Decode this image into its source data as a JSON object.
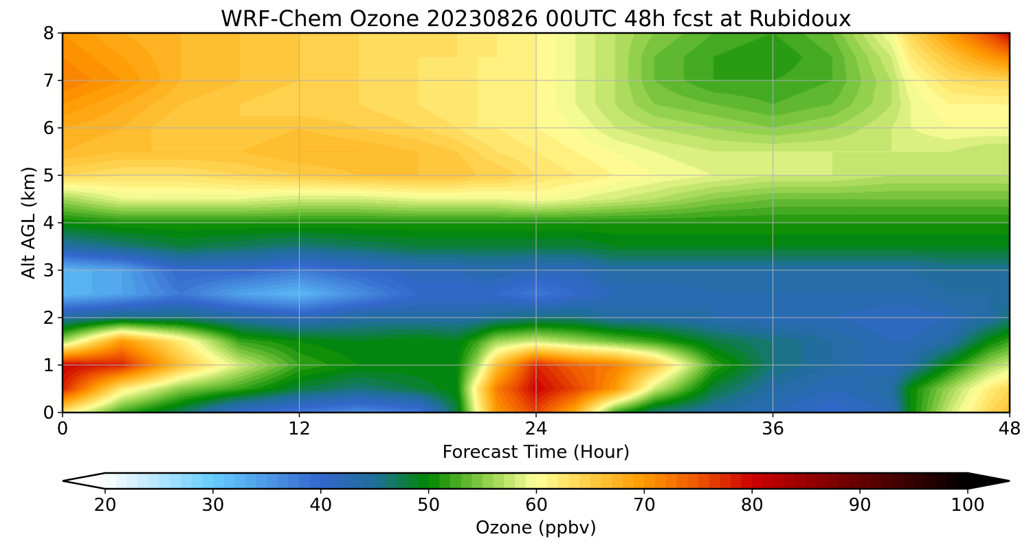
{
  "chart_data": {
    "type": "heatmap",
    "title": "WRF-Chem Ozone  20230826 00UTC 48h fcst at Rubidoux",
    "xlabel": "Forecast Time (Hour)",
    "ylabel": "Alt AGL (km)",
    "xlim": [
      0,
      48
    ],
    "ylim": [
      0,
      8
    ],
    "xticks": [
      "0",
      "12",
      "24",
      "36",
      "48"
    ],
    "yticks": [
      "0",
      "1",
      "2",
      "3",
      "4",
      "5",
      "6",
      "7",
      "8"
    ],
    "grid": true,
    "x": [
      0,
      3,
      6,
      9,
      12,
      15,
      18,
      20,
      21,
      22,
      24,
      26,
      28,
      30,
      33,
      36,
      39,
      42,
      43,
      45,
      47,
      48
    ],
    "y": [
      0,
      0.5,
      1,
      1.5,
      2,
      2.5,
      3,
      3.5,
      4,
      4.5,
      5,
      5.5,
      6,
      6.5,
      7,
      7.5,
      8
    ],
    "values": [
      [
        62,
        52,
        47,
        40,
        38,
        36,
        38,
        48,
        60,
        70,
        76,
        68,
        52,
        46,
        44,
        42,
        40,
        42,
        50,
        58,
        64,
        66
      ],
      [
        78,
        62,
        55,
        52,
        48,
        46,
        48,
        50,
        62,
        72,
        80,
        76,
        70,
        58,
        48,
        44,
        42,
        44,
        50,
        56,
        62,
        64
      ],
      [
        80,
        78,
        66,
        58,
        52,
        50,
        50,
        50,
        56,
        66,
        78,
        74,
        72,
        66,
        52,
        46,
        44,
        42,
        44,
        50,
        56,
        58
      ],
      [
        56,
        70,
        62,
        52,
        50,
        49,
        50,
        49,
        52,
        56,
        58,
        56,
        54,
        52,
        48,
        46,
        44,
        42,
        42,
        44,
        50,
        52
      ],
      [
        44,
        46,
        46,
        44,
        42,
        44,
        44,
        44,
        44,
        45,
        46,
        46,
        44,
        44,
        43,
        42,
        42,
        41,
        41,
        42,
        44,
        46
      ],
      [
        32,
        34,
        38,
        34,
        32,
        36,
        40,
        40,
        40,
        40,
        38,
        40,
        42,
        42,
        43,
        43,
        43,
        43,
        43,
        44,
        44,
        44
      ],
      [
        32,
        34,
        40,
        40,
        38,
        40,
        42,
        42,
        43,
        43,
        42,
        42,
        44,
        44,
        44,
        44,
        44,
        44,
        44,
        45,
        45,
        45
      ],
      [
        44,
        46,
        48,
        47,
        46,
        47,
        48,
        48,
        48,
        48,
        48,
        48,
        49,
        49,
        49,
        49,
        49,
        49,
        49,
        49,
        49,
        49
      ],
      [
        50,
        51,
        51,
        51,
        51,
        51,
        51,
        51,
        51,
        51,
        51,
        51,
        51,
        51,
        51,
        51,
        51,
        51,
        51,
        51,
        51,
        51
      ],
      [
        56,
        59,
        59,
        59,
        58,
        58,
        59,
        59,
        59,
        59,
        60,
        59,
        58,
        57,
        55,
        54,
        54,
        54,
        54,
        54,
        54,
        54
      ],
      [
        64,
        63,
        63,
        64,
        65,
        66,
        66,
        66,
        65,
        65,
        63,
        62,
        61,
        60,
        59,
        58,
        58,
        57,
        57,
        57,
        57,
        57
      ],
      [
        67,
        66,
        66,
        66,
        67,
        67,
        66,
        65,
        64,
        63,
        62,
        61,
        60,
        59,
        58,
        58,
        58,
        58,
        58,
        58,
        57,
        57
      ],
      [
        68,
        67,
        65,
        65,
        66,
        65,
        64,
        63,
        62,
        62,
        61,
        60,
        58,
        57,
        56,
        55,
        56,
        58,
        59,
        60,
        60,
        60
      ],
      [
        70,
        68,
        66,
        65,
        64,
        64,
        63,
        62,
        62,
        61,
        61,
        59,
        57,
        55,
        54,
        53,
        54,
        57,
        59,
        61,
        61,
        61
      ],
      [
        72,
        70,
        67,
        66,
        65,
        64,
        63,
        62,
        62,
        61,
        61,
        59,
        57,
        54,
        52,
        52,
        53,
        57,
        60,
        63,
        64,
        64
      ],
      [
        71,
        69,
        67,
        66,
        65,
        64,
        63,
        63,
        62,
        62,
        61,
        59,
        57,
        54,
        52,
        51,
        53,
        58,
        62,
        66,
        70,
        72
      ],
      [
        70,
        68,
        67,
        66,
        65,
        64,
        64,
        63,
        63,
        62,
        61,
        59,
        57,
        55,
        53,
        52,
        54,
        60,
        64,
        70,
        76,
        80
      ]
    ],
    "colorbar": {
      "label": "Ozone  (ppbv)",
      "range": [
        20,
        100
      ],
      "levels": 80,
      "extend": "both",
      "ticks": [
        "20",
        "30",
        "40",
        "50",
        "60",
        "70",
        "80",
        "90",
        "100"
      ],
      "colors": [
        {
          "v": 20,
          "c": "#ffffff"
        },
        {
          "v": 30,
          "c": "#66ccff"
        },
        {
          "v": 40,
          "c": "#3366cc"
        },
        {
          "v": 45,
          "c": "#1f6f99"
        },
        {
          "v": 50,
          "c": "#008800"
        },
        {
          "v": 55,
          "c": "#88cc44"
        },
        {
          "v": 60,
          "c": "#ffff99"
        },
        {
          "v": 65,
          "c": "#ffcc44"
        },
        {
          "v": 70,
          "c": "#ff9900"
        },
        {
          "v": 75,
          "c": "#ee5500"
        },
        {
          "v": 80,
          "c": "#cc0000"
        },
        {
          "v": 90,
          "c": "#660000"
        },
        {
          "v": 100,
          "c": "#000000"
        }
      ]
    }
  }
}
